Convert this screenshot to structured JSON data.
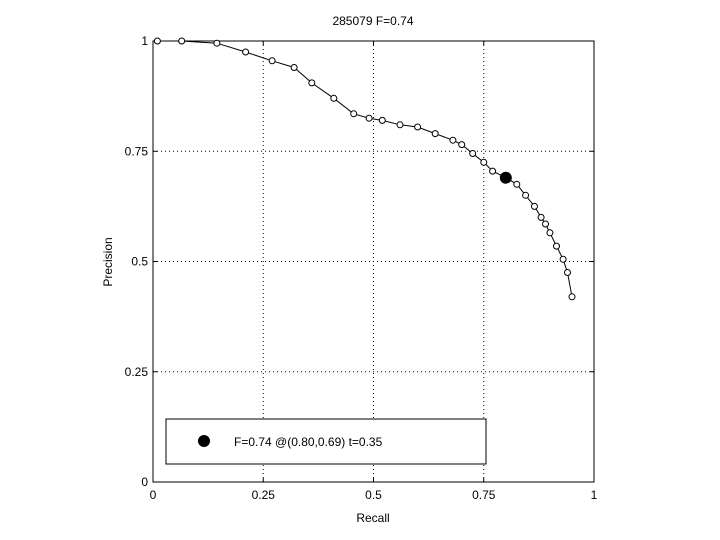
{
  "chart_data": {
    "type": "line",
    "title": "285079 F=0.74",
    "xlabel": "Recall",
    "ylabel": "Precision",
    "xlim": [
      0,
      1
    ],
    "ylim": [
      0,
      1
    ],
    "xticks": [
      0,
      0.25,
      0.5,
      0.75,
      1
    ],
    "xtick_labels": [
      "0",
      "0.25",
      "0.5",
      "0.75",
      "1"
    ],
    "yticks": [
      0,
      0.25,
      0.5,
      0.75,
      1
    ],
    "ytick_labels": [
      "0",
      "0.25",
      "0.5",
      "0.75",
      "1"
    ],
    "grid": true,
    "series": [
      {
        "x": [
          0.01,
          0.065,
          0.145,
          0.21,
          0.27,
          0.32,
          0.36,
          0.41,
          0.455,
          0.49,
          0.52,
          0.56,
          0.6,
          0.64,
          0.68,
          0.7,
          0.725,
          0.75,
          0.77,
          0.8,
          0.825,
          0.845,
          0.865,
          0.88,
          0.89,
          0.9,
          0.915,
          0.93,
          0.94,
          0.95
        ],
        "y": [
          1.0,
          1.0,
          0.995,
          0.975,
          0.955,
          0.94,
          0.905,
          0.87,
          0.835,
          0.825,
          0.82,
          0.81,
          0.805,
          0.79,
          0.775,
          0.765,
          0.745,
          0.725,
          0.705,
          0.69,
          0.675,
          0.65,
          0.625,
          0.6,
          0.585,
          0.565,
          0.535,
          0.505,
          0.475,
          0.42
        ]
      }
    ],
    "best_point": {
      "x": 0.8,
      "y": 0.69
    },
    "legend": {
      "text": "F=0.74 @(0.80,0.69) t=0.35",
      "placement": "bottom-left"
    }
  }
}
